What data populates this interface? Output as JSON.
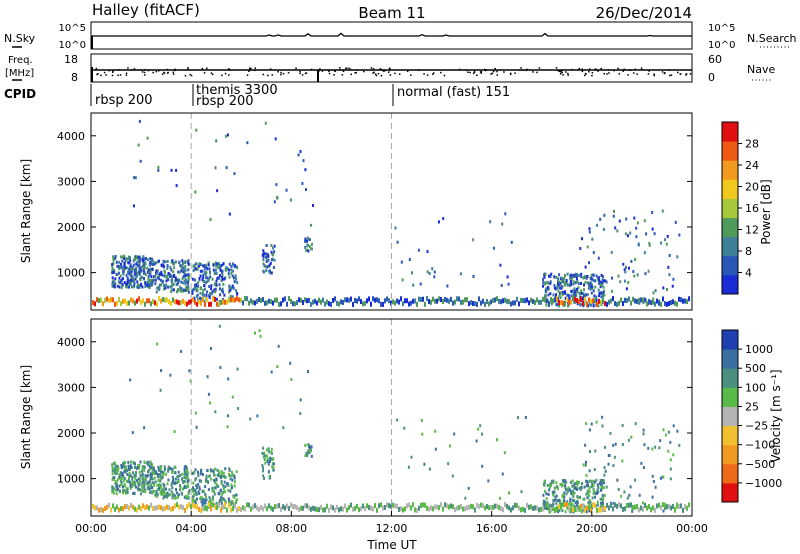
{
  "header": {
    "station": "Halley (fitACF)",
    "beam": "Beam 11",
    "date": "26/Dec/2014"
  },
  "colors": {
    "power_scale": [
      "#1a2cd6",
      "#2a56b8",
      "#3e7f9a",
      "#4f9a5a",
      "#a6c83a",
      "#f0c81e",
      "#f29a1e",
      "#ee5a16",
      "#e01010"
    ],
    "velocity_scale": [
      "#1f3fb0",
      "#3a6fa0",
      "#4a8f80",
      "#5aba48",
      "#b4b4b4",
      "#f0c030",
      "#f09a20",
      "#ee6a18",
      "#e01010"
    ]
  },
  "chart_data": [
    {
      "type": "line",
      "panel": "noise",
      "left_axis": {
        "label": "N.Sky",
        "ticks": [
          "10^5",
          "10^0"
        ]
      },
      "right_axis": {
        "label": "N.Search",
        "ticks": [
          "10^5",
          "10^0"
        ]
      },
      "xlim": [
        "00:00",
        "24:00"
      ]
    },
    {
      "type": "line",
      "panel": "frequency",
      "left_axis": {
        "label_line1": "Freq.",
        "label_line2": "[MHz]",
        "ticks": [
          18,
          8
        ],
        "ylim": [
          8,
          18
        ]
      },
      "right_axis": {
        "label": "Nave",
        "ticks": [
          60,
          0
        ],
        "ylim": [
          0,
          60
        ]
      },
      "xlim": [
        "00:00",
        "24:00"
      ]
    },
    {
      "type": "table",
      "panel": "cpid",
      "label": "CPID",
      "segments": [
        {
          "time": "00:00",
          "label": "rbsp 200"
        },
        {
          "time": "04:00",
          "label": "themis 3300"
        },
        {
          "time": "04:00",
          "label": "rbsp 200"
        },
        {
          "time": "12:00",
          "label": "normal (fast) 151"
        }
      ]
    },
    {
      "type": "heatmap",
      "panel": "power",
      "ylabel": "Slant Range [km]",
      "ylim": [
        180,
        4500
      ],
      "yticks": [
        1000,
        2000,
        3000,
        4000
      ],
      "xlim": [
        0,
        24
      ],
      "grid_lines_hours": [
        4,
        12
      ],
      "colorbar": {
        "label": "Power [dB]",
        "ticks": [
          4,
          8,
          12,
          16,
          20,
          24,
          28
        ],
        "range": [
          0,
          32
        ]
      }
    },
    {
      "type": "heatmap",
      "panel": "velocity",
      "ylabel": "Slant Range [km]",
      "xlabel": "Time UT",
      "ylim": [
        180,
        4500
      ],
      "yticks": [
        1000,
        2000,
        3000,
        4000
      ],
      "xlim": [
        0,
        24
      ],
      "xticks": [
        "00:00",
        "04:00",
        "08:00",
        "12:00",
        "16:00",
        "20:00",
        "00:00"
      ],
      "grid_lines_hours": [
        4,
        12
      ],
      "colorbar": {
        "label": "Velocity [m s⁻¹]",
        "ticks": [
          "1000",
          "500",
          "100",
          "25",
          "−25",
          "−100",
          "−500",
          "−1000"
        ]
      }
    }
  ]
}
